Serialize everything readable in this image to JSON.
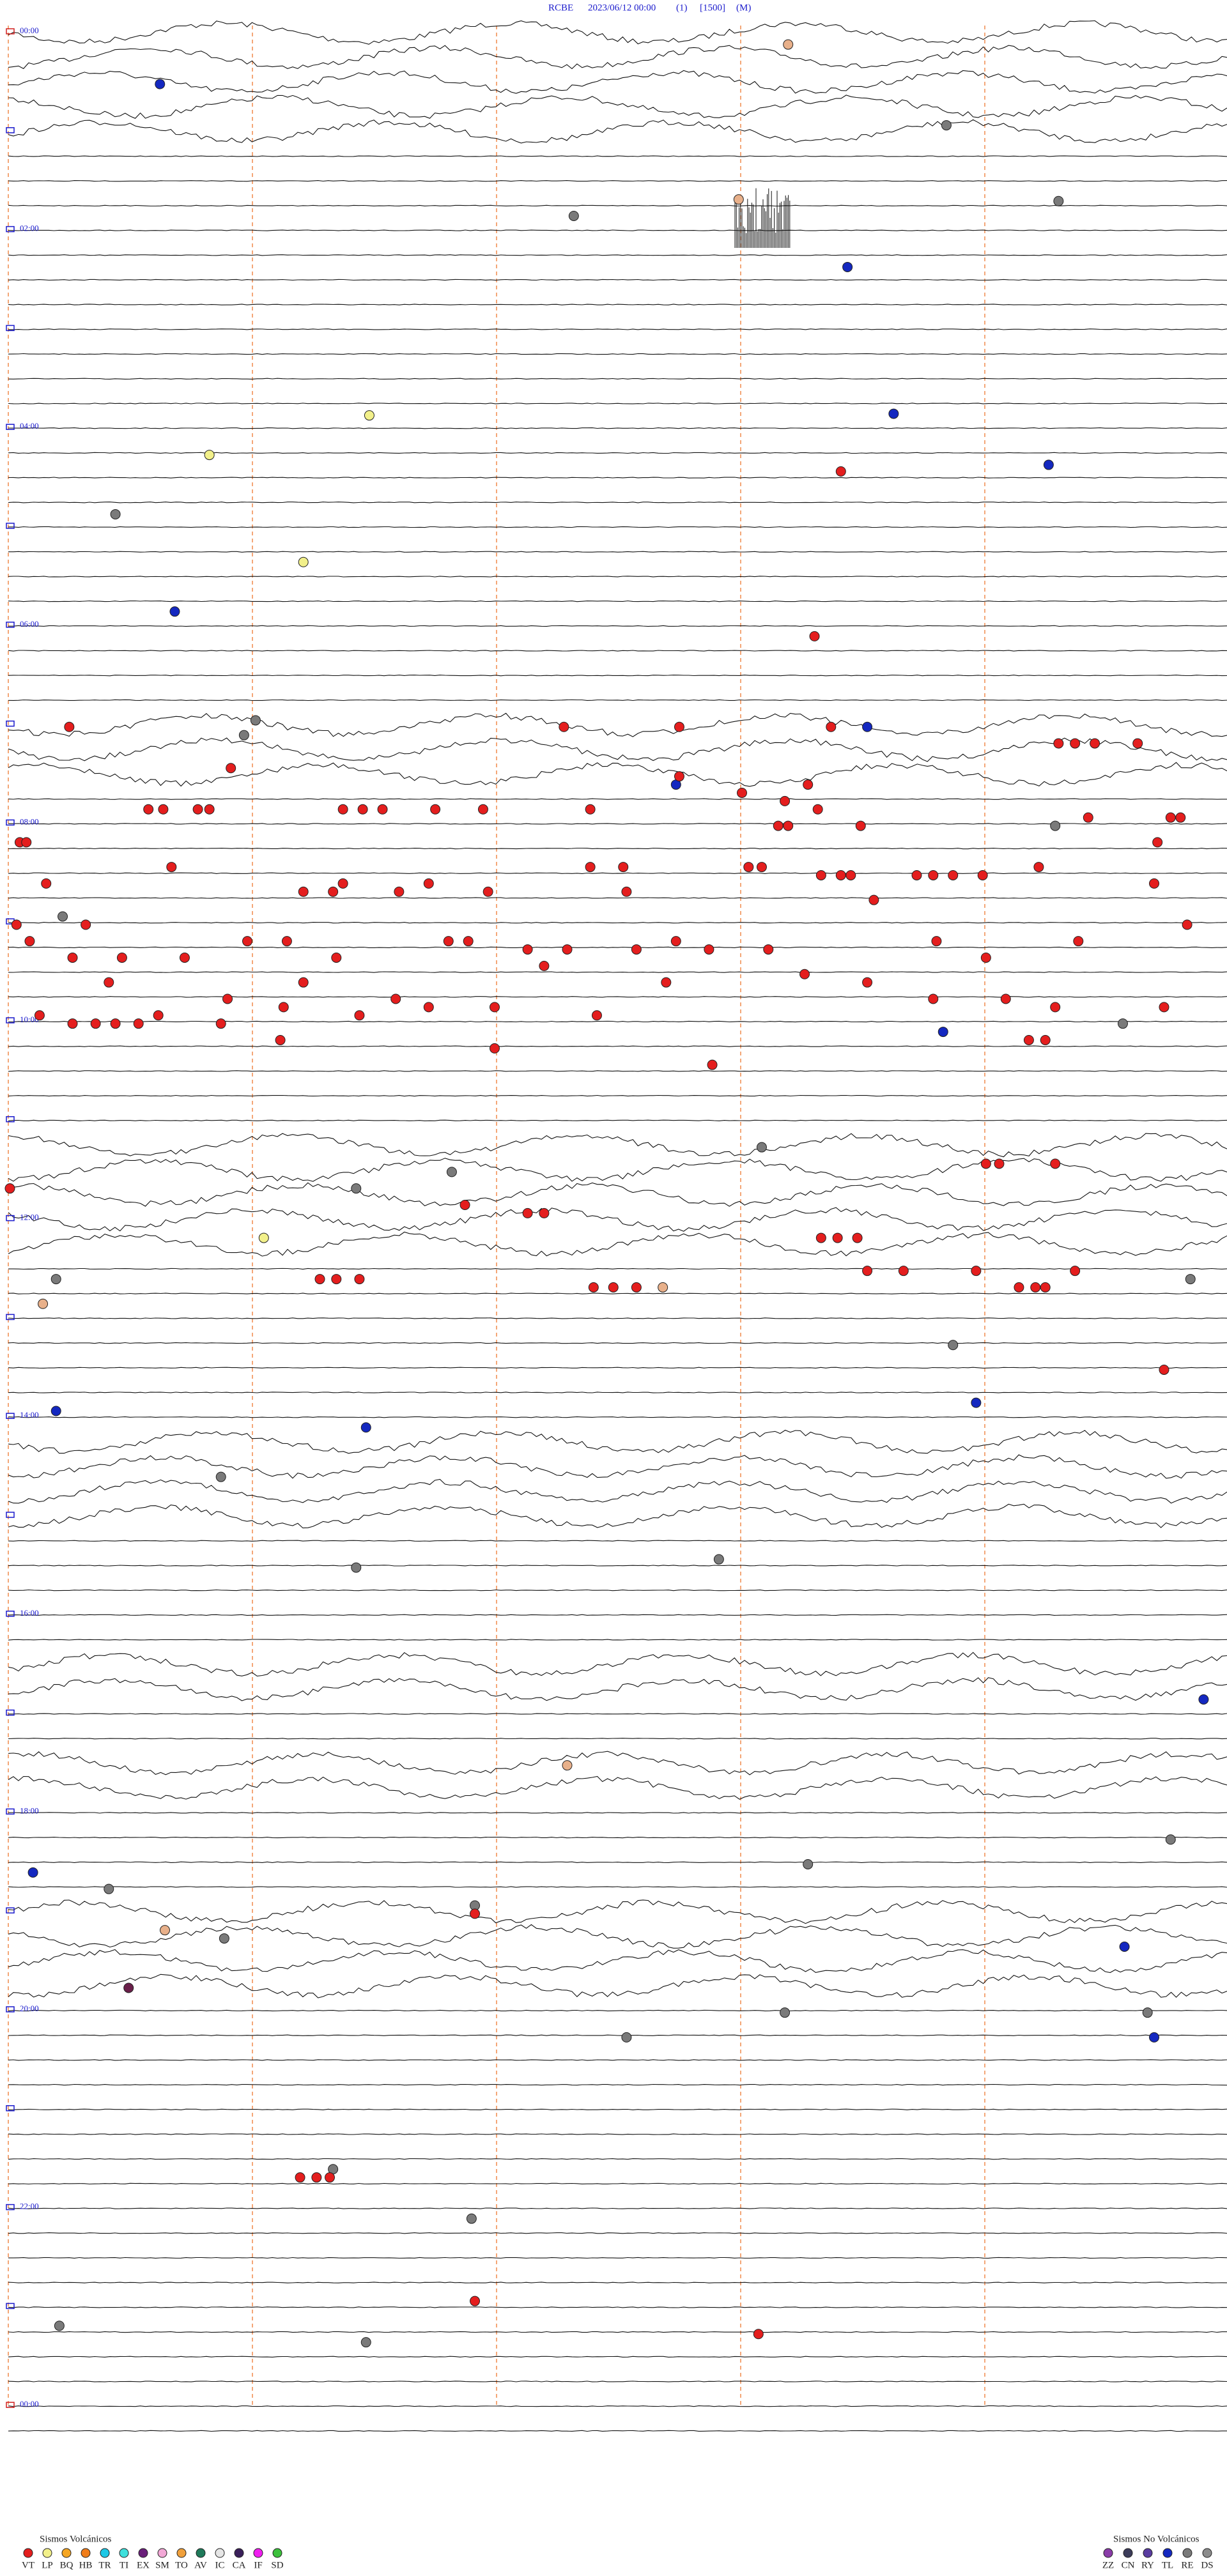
{
  "header": {
    "station": "RCBE",
    "datetime": "2023/06/12 00:00",
    "channel": "(1)",
    "scale": "[1500]",
    "mode": "(M)"
  },
  "time_labels": [
    "00:00",
    "02:00",
    "04:00",
    "06:00",
    "08:00",
    "10:00",
    "12:00",
    "14:00",
    "16:00",
    "18:00",
    "20:00",
    "22:00",
    "00:00"
  ],
  "legend": {
    "volcanic": {
      "title": "Sismos Volcánicos",
      "items": [
        {
          "code": "VT",
          "color": "#e41e1e"
        },
        {
          "code": "LP",
          "color": "#f2f08a"
        },
        {
          "code": "BQ",
          "color": "#f5a623"
        },
        {
          "code": "HB",
          "color": "#f07d1a"
        },
        {
          "code": "TR",
          "color": "#1ec8e6"
        },
        {
          "code": "TI",
          "color": "#3ee0dc"
        },
        {
          "code": "EX",
          "color": "#6a1f7a"
        },
        {
          "code": "SM",
          "color": "#f2a8d6"
        },
        {
          "code": "TO",
          "color": "#f0a03c"
        },
        {
          "code": "AV",
          "color": "#1f7a5a"
        },
        {
          "code": "IC",
          "color": "#e6e6e6"
        },
        {
          "code": "CA",
          "color": "#3a1f5a"
        },
        {
          "code": "IF",
          "color": "#f01ef0"
        },
        {
          "code": "SD",
          "color": "#3cc03c"
        }
      ]
    },
    "non_volcanic": {
      "title": "Sismos No Volcánicos",
      "items": [
        {
          "code": "ZZ",
          "color": "#8a3ca8"
        },
        {
          "code": "CN",
          "color": "#3c3c5a"
        },
        {
          "code": "RY",
          "color": "#5a3ca0"
        },
        {
          "code": "TL",
          "color": "#1428c0"
        },
        {
          "code": "RE",
          "color": "#7a7a7a"
        },
        {
          "code": "DS",
          "color": "#8c8c8c"
        }
      ]
    }
  }
}
